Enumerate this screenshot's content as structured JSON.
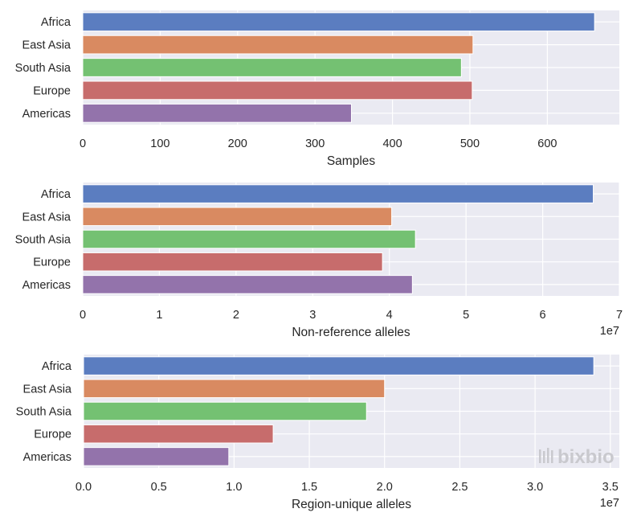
{
  "chart_data": [
    {
      "type": "bar",
      "orientation": "horizontal",
      "categories": [
        "Africa",
        "East Asia",
        "South Asia",
        "Europe",
        "Americas"
      ],
      "values": [
        661,
        504,
        489,
        503,
        347
      ],
      "colors": [
        "#5b7dc0",
        "#d98a61",
        "#74c172",
        "#c76c6c",
        "#9373ab"
      ],
      "title": "",
      "xlabel": "Samples",
      "ylabel": "",
      "xlim": [
        0,
        693
      ],
      "xticks": [
        0,
        100,
        200,
        300,
        400,
        500,
        600
      ],
      "xtick_labels": [
        "0",
        "100",
        "200",
        "300",
        "400",
        "500",
        "600"
      ],
      "offset_text": "",
      "grid": true
    },
    {
      "type": "bar",
      "orientation": "horizontal",
      "categories": [
        "Africa",
        "East Asia",
        "South Asia",
        "Europe",
        "Americas"
      ],
      "values": [
        66600000,
        40300000,
        43400000,
        39100000,
        43000000
      ],
      "colors": [
        "#5b7dc0",
        "#d98a61",
        "#74c172",
        "#c76c6c",
        "#9373ab"
      ],
      "title": "",
      "xlabel": "Non-reference alleles",
      "ylabel": "",
      "xlim": [
        0,
        70000000
      ],
      "xticks": [
        0,
        10000000,
        20000000,
        30000000,
        40000000,
        50000000,
        60000000,
        70000000
      ],
      "xtick_labels": [
        "0",
        "1",
        "2",
        "3",
        "4",
        "5",
        "6",
        "7"
      ],
      "offset_text": "1e7",
      "grid": true
    },
    {
      "type": "bar",
      "orientation": "horizontal",
      "categories": [
        "Africa",
        "East Asia",
        "South Asia",
        "Europe",
        "Americas"
      ],
      "values": [
        33900000,
        20000000,
        18800000,
        12600000,
        9650000
      ],
      "colors": [
        "#5b7dc0",
        "#d98a61",
        "#74c172",
        "#c76c6c",
        "#9373ab"
      ],
      "title": "",
      "xlabel": "Region-unique alleles",
      "ylabel": "",
      "xlim": [
        0,
        35600000
      ],
      "xticks": [
        0,
        5000000,
        10000000,
        15000000,
        20000000,
        25000000,
        30000000,
        35000000
      ],
      "xtick_labels": [
        "0.0",
        "0.5",
        "1.0",
        "1.5",
        "2.0",
        "2.5",
        "3.0",
        "3.5"
      ],
      "offset_text": "1e7",
      "grid": true
    }
  ],
  "style": {
    "plot_background": "#eaeaf2",
    "grid_color": "#ffffff",
    "text_color": "#262626"
  },
  "watermark": {
    "text": "bixbio",
    "icon": "bar-logo-icon"
  }
}
